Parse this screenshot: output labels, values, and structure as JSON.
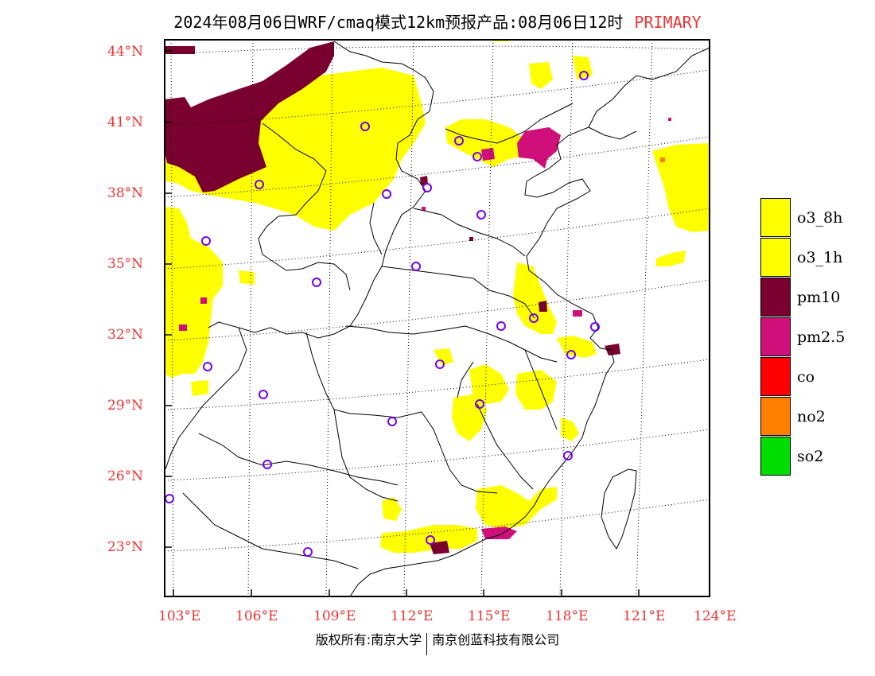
{
  "title": {
    "main": "2024年08月06日WRF/cmaq模式12km预报产品:08月06日12时",
    "tag": "PRIMARY"
  },
  "axes": {
    "lat_labels": [
      "44°N",
      "41°N",
      "38°N",
      "35°N",
      "32°N",
      "29°N",
      "26°N",
      "23°N"
    ],
    "lon_labels": [
      "103°E",
      "106°E",
      "109°E",
      "112°E",
      "115°E",
      "118°E",
      "121°E",
      "124°E"
    ]
  },
  "legend": [
    {
      "label": "o3_8h",
      "color": "#ffff00"
    },
    {
      "label": "o3_1h",
      "color": "#ffff00"
    },
    {
      "label": "pm10",
      "color": "#7a0030"
    },
    {
      "label": "pm2.5",
      "color": "#d0107a"
    },
    {
      "label": "co",
      "color": "#ff0000"
    },
    {
      "label": "no2",
      "color": "#ff8000"
    },
    {
      "label": "so2",
      "color": "#00dd00"
    }
  ],
  "copyright": {
    "left": "版权所有:南京大学",
    "right": "南京创蓝科技有限公司"
  }
}
